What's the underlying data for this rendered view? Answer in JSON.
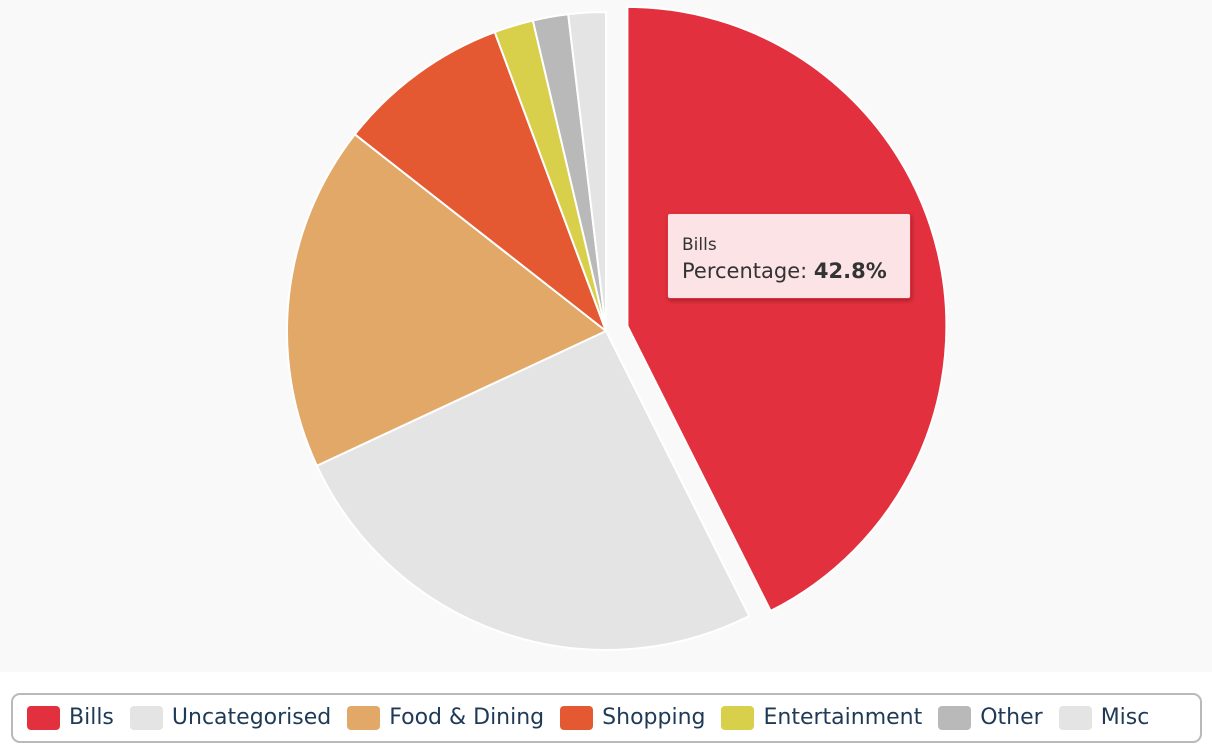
{
  "chart_data": {
    "type": "pie",
    "title": "",
    "slices": [
      {
        "name": "Bills",
        "value": 42.8,
        "color": "#e3303e",
        "exploded": true
      },
      {
        "name": "Uncategorised",
        "value": 25.6,
        "color": "#e4e4e4",
        "exploded": false
      },
      {
        "name": "Food & Dining",
        "value": 17.6,
        "color": "#e2a868",
        "exploded": false
      },
      {
        "name": "Shopping",
        "value": 8.8,
        "color": "#e45832",
        "exploded": false
      },
      {
        "name": "Entertainment",
        "value": 2.0,
        "color": "#d8cf4a",
        "exploded": false
      },
      {
        "name": "Other",
        "value": 1.8,
        "color": "#b9b9b9",
        "exploded": false
      },
      {
        "name": "Misc",
        "value": 1.9,
        "color": "#e4e4e4",
        "exploded": false
      }
    ],
    "legend_position": "bottom"
  },
  "tooltip": {
    "title": "Bills",
    "label": "Percentage:",
    "value": "42.8%"
  }
}
